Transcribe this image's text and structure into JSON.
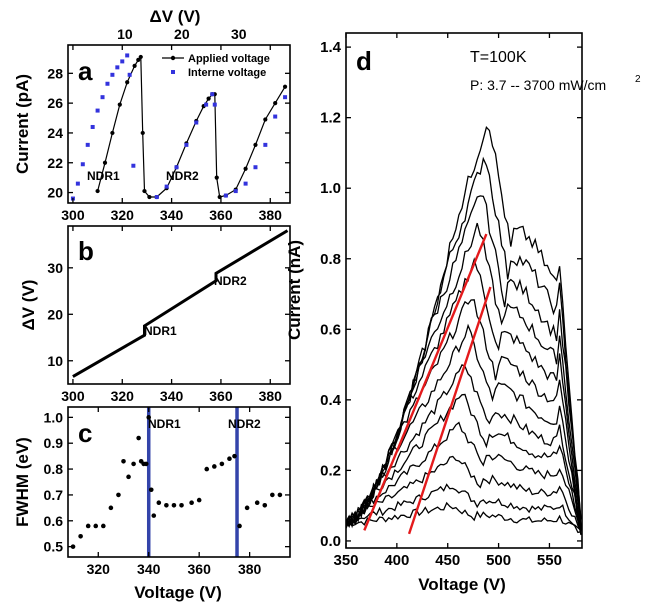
{
  "chart_data": [
    {
      "id": "a",
      "type": "scatter",
      "panel_label": "a",
      "xlabel": "",
      "ylabel": "Current (pA)",
      "top_xlabel": "ΔV (V)",
      "xlim": [
        298,
        388
      ],
      "ylim": [
        19.3,
        29.9
      ],
      "top_xlim": [
        0,
        39
      ],
      "xticks": [
        300,
        320,
        340,
        360,
        380
      ],
      "yticks": [
        20,
        22,
        24,
        26,
        28
      ],
      "top_xticks": [
        10,
        20,
        30
      ],
      "legend": [
        "Applied voltage",
        "Interne voltage"
      ],
      "annotations": [
        "NDR1",
        "NDR2"
      ],
      "series": [
        {
          "name": "Applied voltage",
          "color": "#000000",
          "x": [
            310,
            313,
            316,
            319,
            322,
            325,
            326.5,
            327.5,
            328.3,
            329,
            331,
            334,
            338,
            342,
            346,
            350,
            353,
            355,
            356.5,
            357.5,
            358.3,
            359.5,
            362,
            366,
            370,
            374,
            378,
            382,
            386
          ],
          "y": [
            20.1,
            22,
            24,
            25.9,
            27.4,
            28.5,
            28.9,
            29.1,
            24,
            20.1,
            19.7,
            19.7,
            20.3,
            21.7,
            23.3,
            24.8,
            25.8,
            26.3,
            26.6,
            26.6,
            21,
            19.7,
            19.8,
            20.2,
            21.6,
            23.2,
            24.9,
            26,
            27.1
          ]
        },
        {
          "name": "Interne voltage",
          "color": "#3333dd",
          "x": [
            300,
            302,
            304,
            306,
            308,
            310,
            312,
            314,
            316,
            318,
            320,
            322,
            323,
            324.5,
            334,
            338,
            342,
            346,
            350,
            354,
            356.5,
            357.5,
            362,
            366,
            370,
            374,
            378,
            382,
            386
          ],
          "y": [
            19.6,
            20.6,
            21.9,
            23.2,
            24.4,
            25.5,
            26.4,
            27.3,
            27.9,
            28.4,
            28.8,
            29.2,
            27.9,
            21.8,
            19.7,
            20.4,
            21.7,
            23.2,
            24.7,
            25.9,
            26.6,
            25.9,
            19.8,
            20.1,
            20.6,
            21.7,
            23.2,
            25.1,
            26.4
          ]
        }
      ]
    },
    {
      "id": "b",
      "type": "line",
      "panel_label": "b",
      "xlabel": "",
      "ylabel": "ΔV (V)",
      "xlim": [
        298,
        388
      ],
      "ylim": [
        5,
        39
      ],
      "xticks": [
        300,
        320,
        340,
        360,
        380
      ],
      "yticks": [
        10,
        20,
        30
      ],
      "annotations": [
        "NDR1",
        "NDR2"
      ],
      "series": [
        {
          "name": "",
          "color": "#000000",
          "x": [
            300,
            329,
            329,
            358,
            358,
            387
          ],
          "y": [
            6.6,
            15.5,
            17.5,
            27.2,
            28.8,
            38
          ]
        }
      ]
    },
    {
      "id": "c",
      "type": "scatter",
      "panel_label": "c",
      "xlabel": "Voltage (V)",
      "ylabel": "FWHM (eV)",
      "xlim": [
        308,
        396
      ],
      "ylim": [
        0.46,
        1.04
      ],
      "xticks": [
        320,
        340,
        360,
        380
      ],
      "yticks": [
        0.5,
        0.6,
        0.7,
        0.8,
        0.9,
        1.0
      ],
      "vlines": [
        {
          "x": 340,
          "label": "NDR1",
          "color": "#3344aa"
        },
        {
          "x": 375,
          "label": "NDR2",
          "color": "#3344aa"
        }
      ],
      "series": [
        {
          "name": "",
          "color": "#000000",
          "x": [
            310,
            313,
            316,
            319,
            322,
            325,
            328,
            330,
            332,
            334,
            336,
            337,
            338,
            339,
            340,
            341,
            342,
            344,
            347,
            350,
            353,
            357,
            360,
            363,
            366,
            369,
            372,
            374,
            376,
            379,
            383,
            386,
            389,
            392
          ],
          "y": [
            0.5,
            0.54,
            0.58,
            0.58,
            0.58,
            0.65,
            0.7,
            0.83,
            0.77,
            0.82,
            0.92,
            0.83,
            0.82,
            0.82,
            1.0,
            0.72,
            0.62,
            0.67,
            0.66,
            0.66,
            0.66,
            0.67,
            0.68,
            0.8,
            0.81,
            0.82,
            0.84,
            0.85,
            0.58,
            0.65,
            0.67,
            0.66,
            0.7,
            0.7
          ]
        }
      ]
    },
    {
      "id": "d",
      "type": "line",
      "panel_label": "d",
      "xlabel": "Voltage (V)",
      "ylabel": "Current (nA)",
      "xlim": [
        350,
        582
      ],
      "ylim": [
        -0.02,
        1.44
      ],
      "xticks": [
        350,
        400,
        450,
        500,
        550
      ],
      "yticks": [
        0.0,
        0.2,
        0.4,
        0.6,
        0.8,
        1.0,
        1.2,
        1.4
      ],
      "text": [
        "T=100K",
        "P:  3.7 -- 3700 mW/cm"
      ],
      "text_superscript": "2",
      "peaks": [
        0.1,
        0.16,
        0.24,
        0.33,
        0.42,
        0.5,
        0.6,
        0.7,
        0.8,
        0.9,
        1.0,
        1.1,
        1.2
      ],
      "red_lines": [
        {
          "x": [
            368,
            488
          ],
          "y": [
            0.03,
            0.87
          ]
        },
        {
          "x": [
            412,
            492
          ],
          "y": [
            0.02,
            0.72
          ]
        }
      ]
    }
  ]
}
